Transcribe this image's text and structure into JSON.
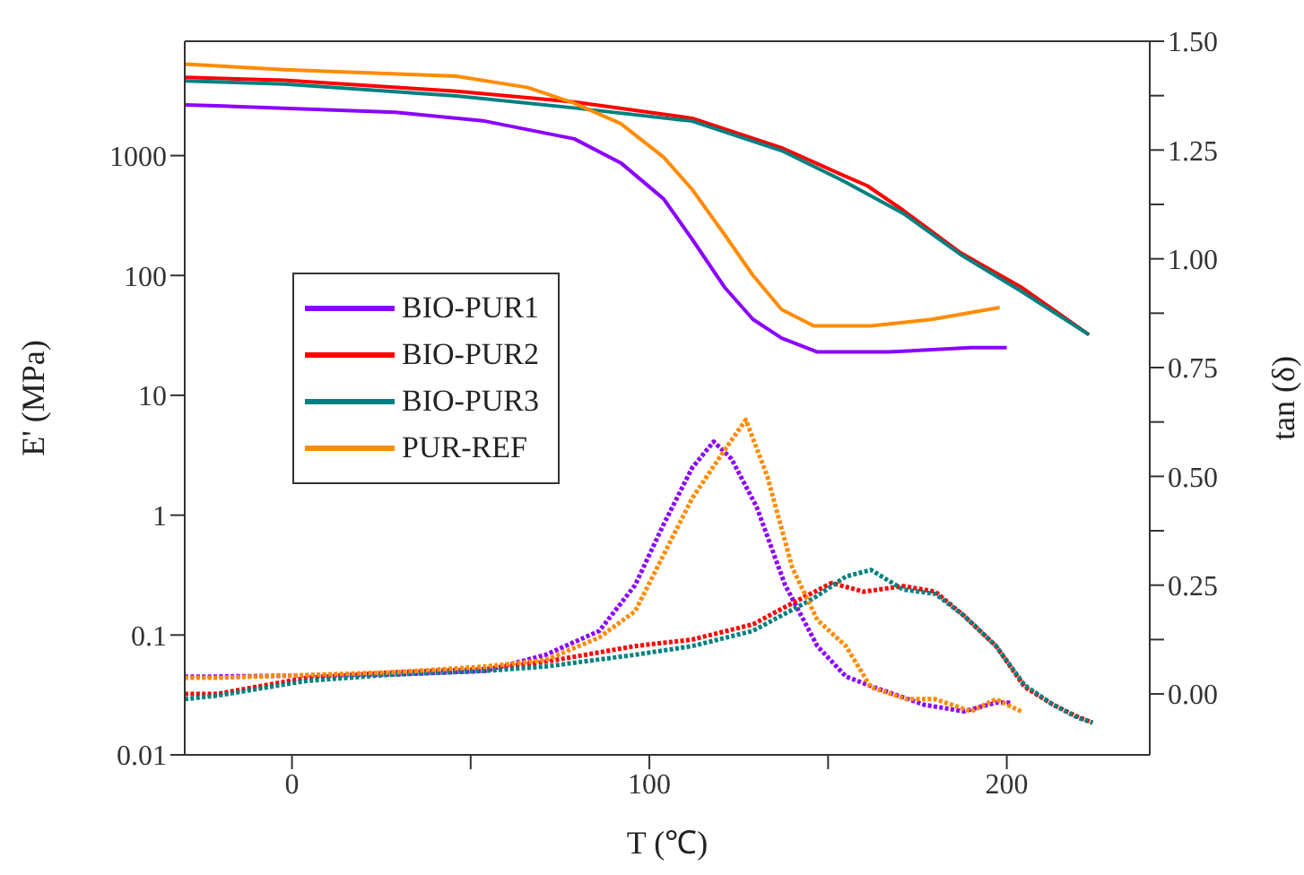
{
  "chart_data": {
    "type": "line",
    "xlabel": "T (℃)",
    "ylabel": "E' (MPa)",
    "y2label": "tan (δ)",
    "log": "y",
    "legend": "left",
    "marker": "none",
    "xlim": [
      -30,
      240
    ],
    "xticks": [
      0,
      {
        "value": 50,
        "label": null
      },
      100,
      {
        "value": 150,
        "label": null
      },
      200
    ],
    "ylim": [
      0.01,
      9000
    ],
    "yticks": [
      0.01,
      0.1,
      1,
      10,
      100,
      1000
    ],
    "y2lim": [
      -0.14,
      1.5
    ],
    "y2ticks": [
      {
        "value": 0,
        "label": "0.00"
      },
      {
        "value": 0.125,
        "label": null
      },
      {
        "value": 0.25,
        "label": "0.25"
      },
      {
        "value": 0.375,
        "label": null
      },
      {
        "value": 0.5,
        "label": "0.50"
      },
      {
        "value": 0.625,
        "label": null
      },
      {
        "value": 0.75,
        "label": "0.75"
      },
      {
        "value": 0.875,
        "label": null
      },
      {
        "value": 1,
        "label": "1.00"
      },
      {
        "value": 1.125,
        "label": null
      },
      {
        "value": 1.25,
        "label": "1.25"
      },
      {
        "value": 1.375,
        "label": null
      },
      {
        "value": 1.5,
        "label": "1.50"
      }
    ],
    "series": [
      {
        "name": "BIO-PUR1",
        "color": "#8b00ff",
        "line_style": "solid",
        "x": [
          -30,
          -21,
          29,
          54,
          79,
          92,
          104,
          112,
          121,
          129,
          137,
          147,
          167,
          190,
          200
        ],
        "values": [
          2650,
          2600,
          2300,
          1940,
          1380,
          870,
          435,
          200,
          80,
          43,
          30,
          23,
          23,
          25,
          25
        ]
      },
      {
        "name": "BIO-PUR2",
        "color": "#ff0000",
        "line_style": "solid",
        "x": [
          -30,
          -2,
          46,
          79,
          112,
          137,
          154,
          161,
          171,
          187,
          204,
          223
        ],
        "values": [
          4500,
          4250,
          3450,
          2800,
          2050,
          1160,
          690,
          560,
          350,
          155,
          80,
          32
        ]
      },
      {
        "name": "BIO-PUR3",
        "color": "#008080",
        "line_style": "solid",
        "x": [
          -30,
          -2,
          46,
          79,
          112,
          137,
          154,
          171,
          187,
          204,
          223
        ],
        "values": [
          4200,
          3950,
          3150,
          2500,
          1940,
          1100,
          620,
          330,
          150,
          74,
          32
        ]
      },
      {
        "name": "PUR-REF",
        "color": "#ff8c00",
        "line_style": "solid",
        "x": [
          -30,
          -2,
          46,
          66,
          79,
          92,
          104,
          112,
          121,
          129,
          137,
          146,
          162,
          179,
          198
        ],
        "values": [
          5800,
          5200,
          4600,
          3700,
          2740,
          1850,
          970,
          520,
          220,
          100,
          52,
          38,
          38,
          43,
          54
        ]
      },
      {
        "color": "#8b00ff",
        "line_style": "dotted",
        "axis": "y2",
        "x": [
          -30,
          -21,
          29,
          54,
          71,
          86,
          96,
          104,
          112,
          118,
          123,
          130,
          138,
          147,
          155,
          163,
          177,
          188,
          197,
          201
        ],
        "values": [
          0.04,
          0.04,
          0.045,
          0.053,
          0.09,
          0.145,
          0.25,
          0.39,
          0.52,
          0.58,
          0.54,
          0.43,
          0.25,
          0.11,
          0.04,
          0.015,
          -0.025,
          -0.04,
          -0.02,
          -0.02
        ]
      },
      {
        "color": "#ff0000",
        "line_style": "dotted",
        "axis": "y2",
        "x": [
          -30,
          -21,
          4,
          29,
          54,
          71,
          96,
          112,
          129,
          138,
          151,
          160,
          171,
          180,
          188,
          197,
          205,
          213,
          220,
          224
        ],
        "values": [
          0,
          0,
          0.037,
          0.05,
          0.057,
          0.074,
          0.11,
          0.125,
          0.16,
          0.2,
          0.255,
          0.235,
          0.248,
          0.235,
          0.18,
          0.11,
          0.016,
          -0.025,
          -0.053,
          -0.066
        ]
      },
      {
        "color": "#008080",
        "line_style": "dotted",
        "axis": "y2",
        "x": [
          -30,
          -21,
          4,
          29,
          54,
          71,
          96,
          112,
          129,
          146,
          155,
          162,
          171,
          180,
          188,
          197,
          205,
          213,
          220,
          224
        ],
        "values": [
          -0.012,
          -0.004,
          0.03,
          0.045,
          0.053,
          0.063,
          0.09,
          0.11,
          0.145,
          0.22,
          0.27,
          0.285,
          0.24,
          0.23,
          0.18,
          0.11,
          0.02,
          -0.025,
          -0.055,
          -0.066
        ]
      },
      {
        "color": "#ff8c00",
        "line_style": "dotted",
        "axis": "y2",
        "x": [
          -30,
          -21,
          29,
          54,
          71,
          86,
          96,
          104,
          112,
          121,
          127,
          133,
          140,
          147,
          155,
          162,
          172,
          180,
          190,
          197,
          204
        ],
        "values": [
          0.037,
          0.037,
          0.05,
          0.063,
          0.078,
          0.13,
          0.19,
          0.32,
          0.45,
          0.56,
          0.63,
          0.5,
          0.29,
          0.17,
          0.11,
          0.015,
          -0.012,
          -0.012,
          -0.04,
          -0.012,
          -0.04
        ]
      }
    ]
  }
}
